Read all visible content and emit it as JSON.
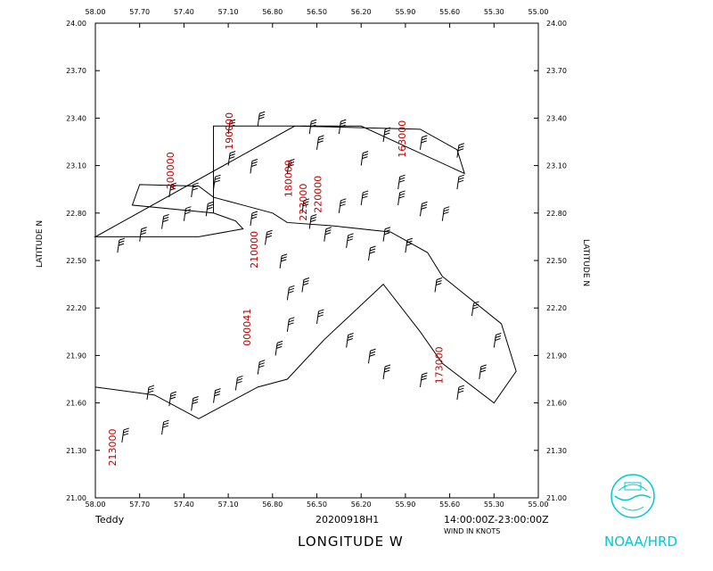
{
  "figure": {
    "storm_name": "Teddy",
    "mission_id": "20200918H1",
    "time_range": "14:00:00Z-23:00:00Z",
    "wind_units": "WIND IN KNOTS",
    "x_axis_label": "LONGITUDE   W",
    "y_axis_label": "LATITUDE   N",
    "logo_text": "NOAA/HRD",
    "logo_icon": "noaa-logo-icon",
    "accent_color": "#00c8d4",
    "annotation_color": "#c00000"
  },
  "chart_data": {
    "type": "scatter",
    "title": "",
    "xlabel": "LONGITUDE   W",
    "ylabel": "LATITUDE   N",
    "xlim": [
      58.0,
      55.0
    ],
    "ylim": [
      21.0,
      24.0
    ],
    "x_ticks": [
      "58.00",
      "57.70",
      "57.40",
      "57.10",
      "56.80",
      "56.50",
      "56.20",
      "55.90",
      "55.60",
      "55.30",
      "55.00"
    ],
    "y_ticks": [
      "21.00",
      "21.30",
      "21.60",
      "21.90",
      "22.20",
      "22.50",
      "22.80",
      "23.10",
      "23.40",
      "23.70",
      "24.00"
    ],
    "grid": false,
    "flight_track": [
      [
        58.0,
        21.7
      ],
      [
        57.6,
        21.65
      ],
      [
        57.3,
        21.5
      ],
      [
        56.9,
        21.7
      ],
      [
        56.7,
        21.75
      ],
      [
        56.45,
        22.0
      ],
      [
        56.05,
        22.35
      ],
      [
        55.8,
        22.05
      ],
      [
        55.65,
        21.85
      ],
      [
        55.3,
        21.6
      ],
      [
        55.15,
        21.8
      ],
      [
        55.25,
        22.1
      ],
      [
        55.65,
        22.4
      ],
      [
        55.75,
        22.55
      ],
      [
        56.0,
        22.68
      ],
      [
        56.4,
        22.72
      ],
      [
        56.7,
        22.74
      ],
      [
        56.8,
        22.8
      ],
      [
        57.0,
        22.85
      ],
      [
        57.2,
        22.9
      ],
      [
        57.3,
        22.97
      ],
      [
        57.7,
        22.98
      ],
      [
        57.75,
        22.85
      ],
      [
        57.2,
        22.8
      ],
      [
        57.05,
        22.75
      ],
      [
        57.0,
        22.7
      ],
      [
        57.3,
        22.65
      ],
      [
        58.0,
        22.65
      ],
      [
        56.65,
        23.35
      ],
      [
        55.8,
        23.33
      ],
      [
        55.55,
        23.2
      ],
      [
        55.5,
        23.05
      ],
      [
        56.2,
        23.35
      ],
      [
        57.2,
        23.35
      ],
      [
        57.2,
        22.8
      ]
    ],
    "track_time_labels": [
      {
        "label": "163000",
        "lon": 55.9,
        "lat": 23.15
      },
      {
        "label": "173000",
        "lon": 55.65,
        "lat": 21.72
      },
      {
        "label": "213000",
        "lon": 57.86,
        "lat": 21.2
      },
      {
        "label": "200000",
        "lon": 57.47,
        "lat": 22.95
      },
      {
        "label": "190000",
        "lon": 57.07,
        "lat": 23.2
      },
      {
        "label": "180000",
        "lon": 56.67,
        "lat": 22.9
      },
      {
        "label": "223000",
        "lon": 56.57,
        "lat": 22.75
      },
      {
        "label": "220000",
        "lon": 56.47,
        "lat": 22.8
      },
      {
        "label": "210000",
        "lon": 56.9,
        "lat": 22.45
      },
      {
        "label": "000041",
        "lon": 56.95,
        "lat": 21.96
      }
    ],
    "wind_barb_points": [
      [
        57.85,
        22.55
      ],
      [
        57.7,
        22.62
      ],
      [
        57.55,
        22.7
      ],
      [
        57.4,
        22.75
      ],
      [
        57.25,
        22.78
      ],
      [
        56.95,
        22.72
      ],
      [
        56.85,
        22.6
      ],
      [
        56.75,
        22.45
      ],
      [
        56.7,
        22.25
      ],
      [
        56.7,
        22.05
      ],
      [
        56.78,
        21.9
      ],
      [
        56.9,
        21.78
      ],
      [
        57.05,
        21.68
      ],
      [
        57.2,
        21.6
      ],
      [
        57.35,
        21.55
      ],
      [
        57.5,
        21.58
      ],
      [
        57.65,
        21.62
      ],
      [
        57.82,
        21.35
      ],
      [
        57.55,
        21.4
      ],
      [
        56.6,
        22.3
      ],
      [
        56.5,
        22.1
      ],
      [
        56.3,
        21.95
      ],
      [
        56.15,
        21.85
      ],
      [
        56.05,
        21.75
      ],
      [
        55.8,
        21.7
      ],
      [
        55.55,
        21.62
      ],
      [
        55.4,
        21.75
      ],
      [
        55.3,
        21.95
      ],
      [
        55.45,
        22.15
      ],
      [
        55.7,
        22.3
      ],
      [
        55.9,
        22.55
      ],
      [
        56.05,
        22.62
      ],
      [
        56.15,
        22.5
      ],
      [
        56.3,
        22.58
      ],
      [
        56.45,
        22.62
      ],
      [
        56.55,
        22.7
      ],
      [
        56.6,
        22.8
      ],
      [
        56.35,
        22.8
      ],
      [
        56.2,
        22.85
      ],
      [
        55.95,
        22.85
      ],
      [
        55.8,
        22.78
      ],
      [
        55.65,
        22.75
      ],
      [
        55.55,
        22.95
      ],
      [
        55.95,
        22.95
      ],
      [
        56.2,
        23.1
      ],
      [
        56.5,
        23.2
      ],
      [
        56.7,
        23.05
      ],
      [
        56.95,
        23.05
      ],
      [
        57.1,
        23.1
      ],
      [
        57.2,
        22.95
      ],
      [
        57.35,
        22.9
      ],
      [
        57.5,
        22.9
      ],
      [
        57.1,
        23.3
      ],
      [
        56.9,
        23.35
      ],
      [
        56.55,
        23.3
      ],
      [
        56.35,
        23.3
      ],
      [
        56.05,
        23.25
      ],
      [
        55.8,
        23.2
      ],
      [
        55.55,
        23.15
      ]
    ]
  }
}
